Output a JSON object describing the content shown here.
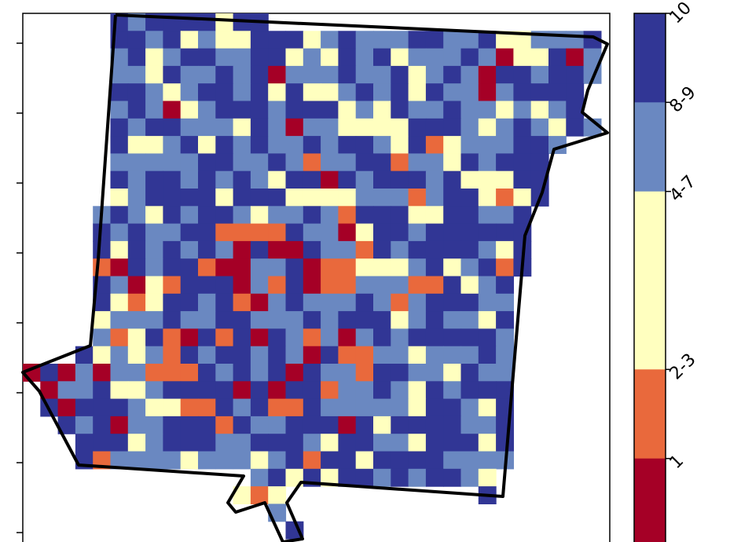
{
  "legend": {
    "items": [
      {
        "label": "10",
        "color": "#313695",
        "fraction": 0.2
      },
      {
        "label": "8-9",
        "color": "#6a88c1",
        "fraction": 0.2
      },
      {
        "label": "4-7",
        "color": "#ffffbf",
        "fraction": 0.4
      },
      {
        "label": "2-3",
        "color": "#e9693c",
        "fraction": 0.2
      },
      {
        "label": "1",
        "color": "#a50026",
        "fraction": 0.2
      }
    ]
  },
  "axis": {
    "y_tick_count": 8
  }
}
